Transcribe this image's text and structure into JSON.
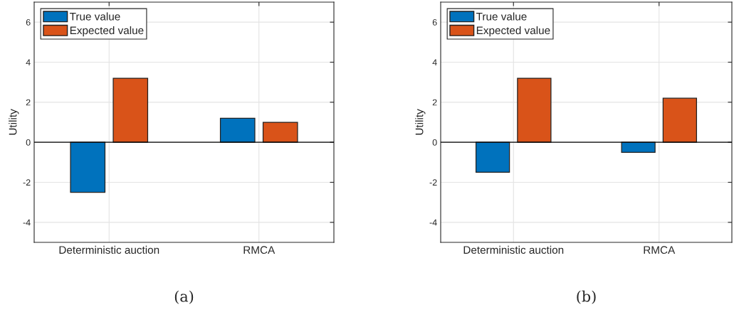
{
  "chart_data": [
    {
      "type": "bar",
      "categories": [
        "Deterministic auction",
        "RMCA"
      ],
      "ylabel": "Utility",
      "ylim": [
        -5,
        7
      ],
      "yticks": [
        -4,
        -2,
        0,
        2,
        4,
        6
      ],
      "grid": true,
      "legend": "top left",
      "annotations": [
        "(a)"
      ],
      "series": [
        {
          "name": "True value",
          "color": "#0072bd",
          "values": [
            -2.5,
            1.2
          ]
        },
        {
          "name": "Expected value",
          "color": "#d95319",
          "values": [
            3.2,
            1.0
          ]
        }
      ]
    },
    {
      "type": "bar",
      "categories": [
        "Deterministic auction",
        "RMCA"
      ],
      "ylabel": "Utility",
      "ylim": [
        -5,
        7
      ],
      "yticks": [
        -4,
        -2,
        0,
        2,
        4,
        6
      ],
      "grid": true,
      "legend": "top left",
      "annotations": [
        "(b)"
      ],
      "series": [
        {
          "name": "True value",
          "color": "#0072bd",
          "values": [
            -1.5,
            -0.5
          ]
        },
        {
          "name": "Expected value",
          "color": "#d95319",
          "values": [
            3.2,
            2.2
          ]
        }
      ]
    }
  ]
}
